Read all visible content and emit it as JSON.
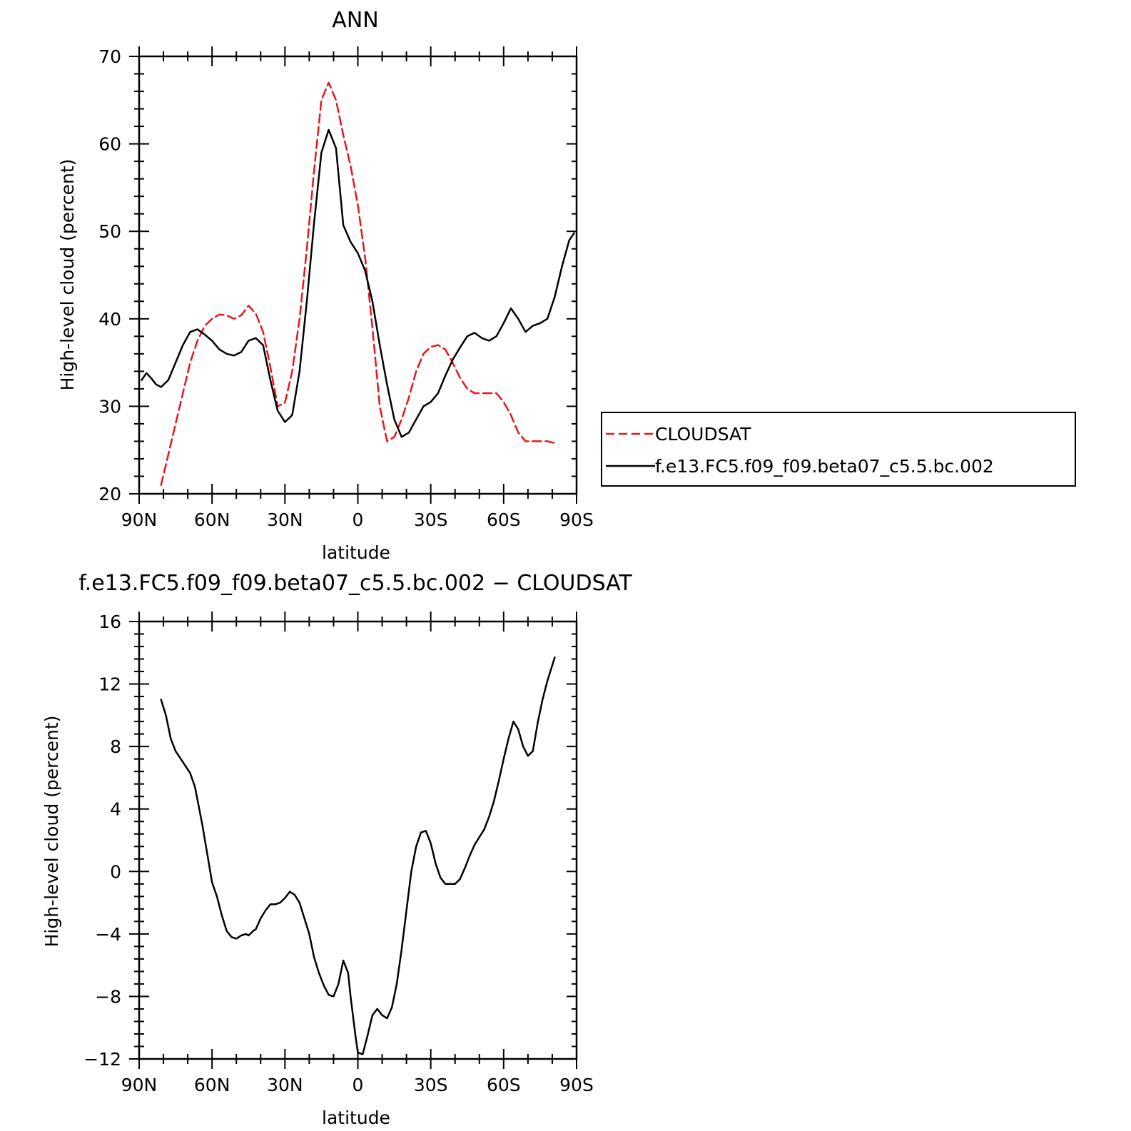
{
  "chart_data": [
    {
      "type": "line",
      "title": "ANN",
      "xlabel": "latitude",
      "ylabel": "High-level cloud (percent)",
      "xlim": [
        90,
        -90
      ],
      "ylim": [
        20,
        70
      ],
      "x_ticks": [
        90,
        60,
        30,
        0,
        -30,
        -60,
        -90
      ],
      "x_tick_labels": [
        "90N",
        "60N",
        "30N",
        "0",
        "30S",
        "60S",
        "90S"
      ],
      "y_ticks": [
        20,
        30,
        40,
        50,
        60,
        70
      ],
      "y_tick_labels": [
        "20",
        "30",
        "40",
        "50",
        "60",
        "70"
      ],
      "legend_position": "right",
      "series": [
        {
          "name": "CLOUDSAT",
          "color": "#e8161b",
          "dash": "dashed",
          "x": [
            81,
            78,
            75,
            72,
            69,
            66,
            63,
            60,
            57,
            54,
            51,
            48,
            45,
            42,
            39,
            36,
            33,
            30,
            27,
            24,
            21,
            18,
            15,
            12,
            9,
            6,
            3,
            0,
            -3,
            -6,
            -9,
            -12,
            -15,
            -18,
            -21,
            -24,
            -27,
            -30,
            -33,
            -36,
            -39,
            -42,
            -45,
            -48,
            -51,
            -54,
            -57,
            -60,
            -63,
            -66,
            -69,
            -72,
            -75,
            -78,
            -81
          ],
          "y": [
            21,
            24.5,
            28,
            31.5,
            35,
            37.5,
            39.2,
            40,
            40.5,
            40.4,
            40,
            40.4,
            41.5,
            40.6,
            38.5,
            34.5,
            30,
            30.4,
            34,
            40,
            48,
            57,
            65,
            67,
            65,
            61,
            57.5,
            53,
            47,
            39,
            30,
            26,
            26.5,
            28.5,
            31,
            34,
            36,
            36.8,
            37,
            36.5,
            35,
            33.3,
            32,
            31.5,
            31.5,
            31.5,
            31.5,
            30.5,
            29,
            27,
            26,
            26,
            26,
            26,
            25.8
          ]
        },
        {
          "name": "f.e13.FC5.f09_f09.beta07_c5.5.bc.002",
          "color": "#000000",
          "dash": "solid",
          "x": [
            89,
            87,
            85,
            83,
            81,
            78,
            75,
            72,
            69,
            66,
            63,
            60,
            57,
            54,
            51,
            48,
            45,
            42,
            39,
            36,
            33,
            30,
            27,
            24,
            21,
            18,
            15,
            12,
            9,
            6,
            3,
            0,
            -3,
            -6,
            -9,
            -12,
            -15,
            -18,
            -21,
            -24,
            -27,
            -30,
            -33,
            -36,
            -39,
            -42,
            -45,
            -48,
            -51,
            -54,
            -57,
            -60,
            -63,
            -66,
            -69,
            -72,
            -75,
            -78,
            -81,
            -84,
            -87,
            -89
          ],
          "y": [
            33,
            33.8,
            33.2,
            32.5,
            32.2,
            33,
            35,
            37,
            38.5,
            38.8,
            38.2,
            37.5,
            36.5,
            36,
            35.8,
            36.2,
            37.5,
            37.8,
            37,
            33,
            29.5,
            28.2,
            29,
            34,
            42,
            51,
            59,
            61.6,
            59.5,
            50.7,
            48.8,
            47.5,
            45.5,
            42,
            37,
            32.5,
            28.5,
            26.5,
            27,
            28.5,
            30,
            30.5,
            31.5,
            33.5,
            35.3,
            36.7,
            38,
            38.4,
            37.8,
            37.5,
            38,
            39.5,
            41.2,
            40,
            38.5,
            39.2,
            39.5,
            40,
            42.5,
            46,
            49,
            49.8
          ]
        }
      ]
    },
    {
      "type": "line",
      "title": "f.e13.FC5.f09_f09.beta07_c5.5.bc.002 − CLOUDSAT",
      "xlabel": "latitude",
      "ylabel": "High-level cloud (percent)",
      "xlim": [
        90,
        -90
      ],
      "ylim": [
        -12,
        16
      ],
      "x_ticks": [
        90,
        60,
        30,
        0,
        -30,
        -60,
        -90
      ],
      "x_tick_labels": [
        "90N",
        "60N",
        "30N",
        "0",
        "30S",
        "60S",
        "90S"
      ],
      "y_ticks": [
        -12,
        -8,
        -4,
        0,
        4,
        8,
        12,
        16
      ],
      "y_tick_labels": [
        "−12",
        "−8",
        "−4",
        "0",
        "4",
        "8",
        "12",
        "16"
      ],
      "series": [
        {
          "color": "#000000",
          "dash": "solid",
          "x": [
            81,
            79,
            77,
            75,
            72,
            69,
            67,
            64,
            60,
            58,
            56,
            54,
            52,
            50,
            48,
            46,
            45,
            43,
            42,
            40,
            38,
            36,
            34,
            32,
            30,
            28,
            26,
            24,
            22,
            20,
            18,
            16,
            14,
            12,
            10,
            8,
            6,
            4,
            3,
            1,
            0,
            -2,
            -4,
            -6,
            -8,
            -10,
            -12,
            -14,
            -16,
            -18,
            -20,
            -22,
            -24,
            -26,
            -28,
            -30,
            -32,
            -34,
            -36,
            -38,
            -40,
            -42,
            -44,
            -46,
            -48,
            -50,
            -52,
            -54,
            -56,
            -58,
            -60,
            -62,
            -64,
            -66,
            -68,
            -70,
            -72,
            -74,
            -76,
            -78,
            -81
          ],
          "y": [
            11,
            10,
            8.5,
            7.7,
            7,
            6.3,
            5.4,
            3,
            -0.7,
            -1.6,
            -2.8,
            -3.8,
            -4.2,
            -4.3,
            -4.1,
            -4,
            -4.1,
            -3.8,
            -3.7,
            -3,
            -2.5,
            -2.1,
            -2.1,
            -2,
            -1.7,
            -1.3,
            -1.5,
            -2,
            -3,
            -4,
            -5.5,
            -6.5,
            -7.3,
            -7.9,
            -8,
            -7.2,
            -5.7,
            -6.5,
            -8,
            -10.5,
            -11.6,
            -11.7,
            -10.5,
            -9.2,
            -8.8,
            -9.2,
            -9.4,
            -8.7,
            -7.2,
            -5,
            -2.5,
            0,
            1.6,
            2.5,
            2.6,
            1.8,
            0.5,
            -0.4,
            -0.8,
            -0.8,
            -0.8,
            -0.5,
            0.2,
            1,
            1.7,
            2.2,
            2.7,
            3.5,
            4.5,
            5.8,
            7.2,
            8.5,
            9.6,
            9.1,
            8,
            7.4,
            7.7,
            9.5,
            11,
            12.2,
            13.7
          ]
        }
      ]
    }
  ]
}
